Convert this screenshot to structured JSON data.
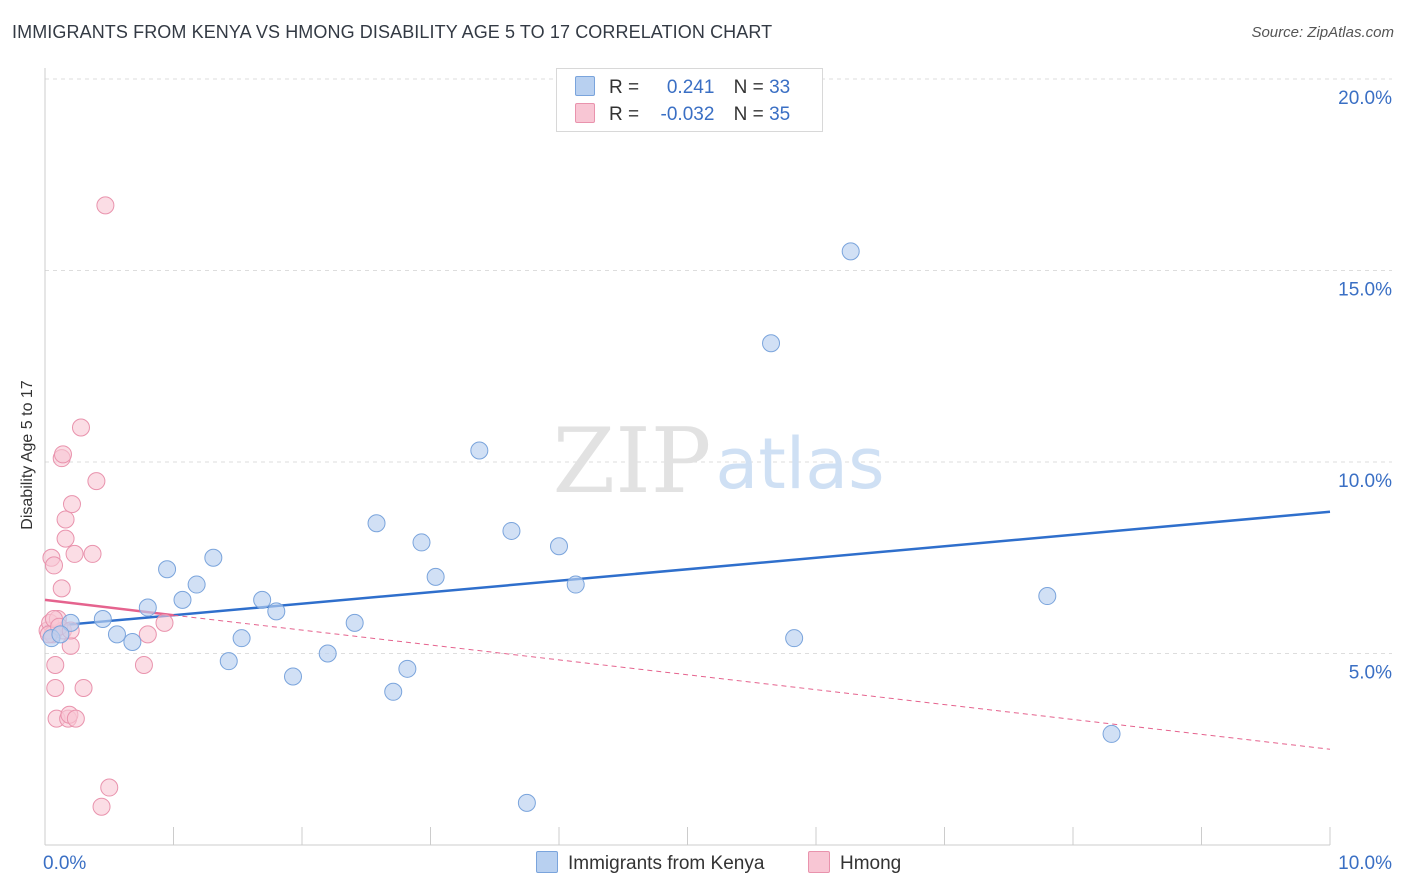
{
  "title": "IMMIGRANTS FROM KENYA VS HMONG DISABILITY AGE 5 TO 17 CORRELATION CHART",
  "source": "Source: ZipAtlas.com",
  "watermark": {
    "zip": "ZIP",
    "atlas": "atlas"
  },
  "legend": {
    "series1": {
      "r_label": "R =",
      "r_value": "0.241",
      "n_label": "N =",
      "n_value": "33"
    },
    "series2": {
      "r_label": "R =",
      "r_value": "-0.032",
      "n_label": "N =",
      "n_value": "35"
    }
  },
  "colors": {
    "kenya_fill": "#b8d0f0",
    "kenya_stroke": "#7aa4dc",
    "kenya_line": "#2f6fcc",
    "hmong_fill": "#f8c6d4",
    "hmong_stroke": "#e993ad",
    "hmong_line": "#e5638e",
    "axis_text": "#3a6fc4",
    "grid": "#dddddd"
  },
  "chart_data": {
    "type": "scatter",
    "title": "IMMIGRANTS FROM KENYA VS HMONG DISABILITY AGE 5 TO 17 CORRELATION CHART",
    "xlabel": "",
    "ylabel": "Disability Age 5 to 17",
    "xlim": [
      0,
      10
    ],
    "ylim": [
      0,
      20
    ],
    "x_tick_labels": [
      "0.0%",
      "10.0%"
    ],
    "y_ticks": [
      5,
      10,
      15,
      20
    ],
    "y_tick_labels": [
      "5.0%",
      "10.0%",
      "15.0%",
      "20.0%"
    ],
    "series": [
      {
        "name": "Immigrants from Kenya",
        "points": [
          [
            0.05,
            5.4
          ],
          [
            0.2,
            5.8
          ],
          [
            0.45,
            5.9
          ],
          [
            0.56,
            5.5
          ],
          [
            0.68,
            5.3
          ],
          [
            0.8,
            6.2
          ],
          [
            0.95,
            7.2
          ],
          [
            1.07,
            6.4
          ],
          [
            1.18,
            6.8
          ],
          [
            1.31,
            7.5
          ],
          [
            1.43,
            4.8
          ],
          [
            1.53,
            5.4
          ],
          [
            1.69,
            6.4
          ],
          [
            1.8,
            6.1
          ],
          [
            1.93,
            4.4
          ],
          [
            2.2,
            5.0
          ],
          [
            2.41,
            5.8
          ],
          [
            2.58,
            8.4
          ],
          [
            2.71,
            4.0
          ],
          [
            2.82,
            4.6
          ],
          [
            2.93,
            7.9
          ],
          [
            3.04,
            7.0
          ],
          [
            3.38,
            10.3
          ],
          [
            3.63,
            8.2
          ],
          [
            3.75,
            1.1
          ],
          [
            4.0,
            7.8
          ],
          [
            4.13,
            6.8
          ],
          [
            5.65,
            13.1
          ],
          [
            5.83,
            5.4
          ],
          [
            6.27,
            15.5
          ],
          [
            7.8,
            6.5
          ],
          [
            8.3,
            2.9
          ],
          [
            0.12,
            5.5
          ]
        ],
        "trend": {
          "x": [
            0.0,
            10.0
          ],
          "y": [
            5.7,
            8.7
          ]
        }
      },
      {
        "name": "Hmong",
        "points": [
          [
            0.02,
            5.6
          ],
          [
            0.04,
            5.8
          ],
          [
            0.06,
            5.5
          ],
          [
            0.05,
            7.5
          ],
          [
            0.07,
            7.3
          ],
          [
            0.08,
            4.7
          ],
          [
            0.08,
            4.1
          ],
          [
            0.09,
            3.3
          ],
          [
            0.1,
            5.9
          ],
          [
            0.13,
            6.7
          ],
          [
            0.13,
            10.1
          ],
          [
            0.14,
            10.2
          ],
          [
            0.14,
            5.6
          ],
          [
            0.16,
            8.5
          ],
          [
            0.16,
            8.0
          ],
          [
            0.18,
            3.3
          ],
          [
            0.19,
            3.4
          ],
          [
            0.2,
            5.2
          ],
          [
            0.21,
            8.9
          ],
          [
            0.23,
            7.6
          ],
          [
            0.24,
            3.3
          ],
          [
            0.28,
            10.9
          ],
          [
            0.3,
            4.1
          ],
          [
            0.37,
            7.6
          ],
          [
            0.4,
            9.5
          ],
          [
            0.44,
            1.0
          ],
          [
            0.47,
            16.7
          ],
          [
            0.5,
            1.5
          ],
          [
            0.77,
            4.7
          ],
          [
            0.8,
            5.5
          ],
          [
            0.93,
            5.8
          ],
          [
            0.03,
            5.5
          ],
          [
            0.07,
            5.9
          ],
          [
            0.11,
            5.7
          ],
          [
            0.2,
            5.6
          ]
        ],
        "trend_solid": {
          "x": [
            0.0,
            1.0
          ],
          "y": [
            6.4,
            6.0
          ]
        },
        "trend_dashed": {
          "x": [
            1.0,
            10.0
          ],
          "y": [
            6.0,
            2.5
          ]
        }
      }
    ],
    "legend_position": "top-center",
    "grid": true
  },
  "bottom_legend": {
    "kenya": "Immigrants from Kenya",
    "hmong": "Hmong"
  }
}
